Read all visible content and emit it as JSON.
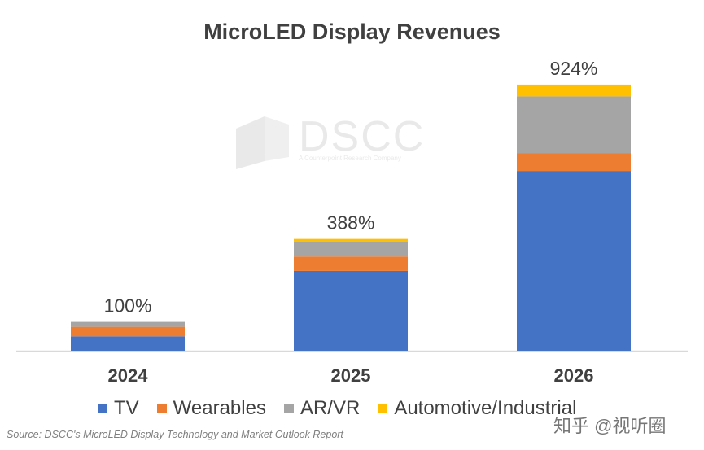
{
  "chart_data": {
    "type": "bar",
    "stacked": true,
    "title": "MicroLED Display Revenues",
    "categories": [
      "2024",
      "2025",
      "2026"
    ],
    "totals_labels": [
      "100%",
      "388%",
      "924%"
    ],
    "series": [
      {
        "name": "TV",
        "color": "#4472C4",
        "values": [
          50,
          277,
          624
        ]
      },
      {
        "name": "Wearables",
        "color": "#ED7D31",
        "values": [
          33,
          50,
          61
        ]
      },
      {
        "name": "AR/VR",
        "color": "#A5A5A5",
        "values": [
          17,
          51,
          198
        ]
      },
      {
        "name": "Automotive/Industrial",
        "color": "#FFC000",
        "values": [
          0,
          10,
          41
        ]
      }
    ],
    "ylim": [
      0,
      924
    ],
    "grid": false,
    "legend": "bottom"
  },
  "source": "Source: DSCC's MicroLED Display Technology and Market Outlook Report",
  "logo": {
    "name": "DSCC",
    "tagline": "A Counterpoint Research Company"
  },
  "watermark": "知乎 @视听圈"
}
